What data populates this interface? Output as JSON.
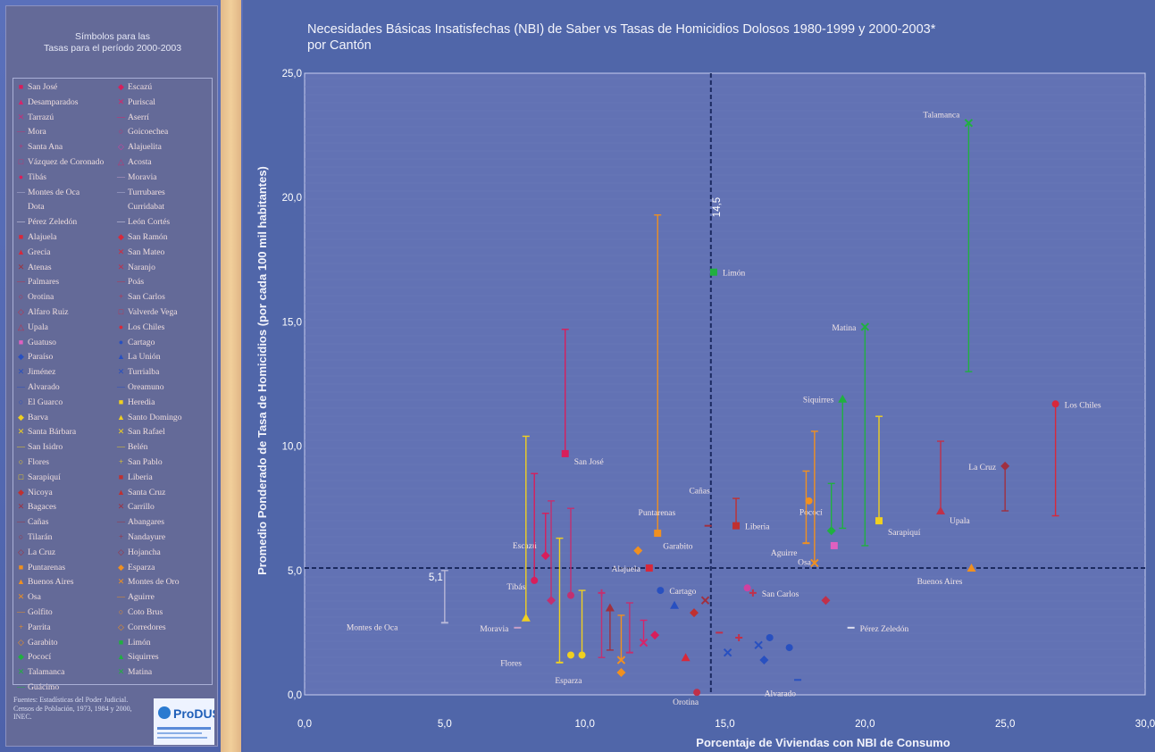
{
  "legend": {
    "header_line1": "Símbolos para las",
    "header_line2": "Tasas para el período 2000-2003",
    "entries": [
      {
        "name": "San José",
        "color": "#d81e5b",
        "glyph": "■"
      },
      {
        "name": "Escazú",
        "color": "#d81e5b",
        "glyph": "◆"
      },
      {
        "name": "Desamparados",
        "color": "#d8246a",
        "glyph": "▲"
      },
      {
        "name": "Puriscal",
        "color": "#d8246a",
        "glyph": "✕"
      },
      {
        "name": "Tarrazú",
        "color": "#c2307a",
        "glyph": "✕"
      },
      {
        "name": "Aserrí",
        "color": "#d8246a",
        "glyph": "—"
      },
      {
        "name": "Mora",
        "color": "#c23070",
        "glyph": "—"
      },
      {
        "name": "Goicoechea",
        "color": "#c23070",
        "glyph": "○"
      },
      {
        "name": "Santa Ana",
        "color": "#c23070",
        "glyph": "+"
      },
      {
        "name": "Alajuelita",
        "color": "#d040a0",
        "glyph": "◇"
      },
      {
        "name": "Vázquez de Coronado",
        "color": "#c23070",
        "glyph": "□"
      },
      {
        "name": "Acosta",
        "color": "#c23070",
        "glyph": "△"
      },
      {
        "name": "Tibás",
        "color": "#d81e5b",
        "glyph": "●"
      },
      {
        "name": "Moravia",
        "color": "#c8a0c8",
        "glyph": "—"
      },
      {
        "name": "Montes de Oca",
        "color": "#b8b8d8",
        "glyph": "—"
      },
      {
        "name": "Turrubares",
        "color": "#b8b8d8",
        "glyph": "—"
      },
      {
        "name": "Dota",
        "color": "#b8b8d8",
        "glyph": ""
      },
      {
        "name": "Curridabat",
        "color": "#b8b8d8",
        "glyph": ""
      },
      {
        "name": "Pérez Zeledón",
        "color": "#e0e0f0",
        "glyph": "—"
      },
      {
        "name": "León Cortés",
        "color": "#e0e0f0",
        "glyph": "—"
      },
      {
        "name": "Alajuela",
        "color": "#d8283a",
        "glyph": "■"
      },
      {
        "name": "San Ramón",
        "color": "#d8283a",
        "glyph": "◆"
      },
      {
        "name": "Grecia",
        "color": "#d8283a",
        "glyph": "▲"
      },
      {
        "name": "San Mateo",
        "color": "#d8283a",
        "glyph": "✕"
      },
      {
        "name": "Atenas",
        "color": "#a0303a",
        "glyph": "✕"
      },
      {
        "name": "Naranjo",
        "color": "#c0304a",
        "glyph": "✕"
      },
      {
        "name": "Palmares",
        "color": "#c0304a",
        "glyph": "—"
      },
      {
        "name": "Poás",
        "color": "#c0304a",
        "glyph": "—"
      },
      {
        "name": "Orotina",
        "color": "#c0304a",
        "glyph": "○"
      },
      {
        "name": "San Carlos",
        "color": "#c0304a",
        "glyph": "+"
      },
      {
        "name": "Alfaro Ruiz",
        "color": "#c0304a",
        "glyph": "◇"
      },
      {
        "name": "Valverde Vega",
        "color": "#c0304a",
        "glyph": "□"
      },
      {
        "name": "Upala",
        "color": "#c0304a",
        "glyph": "△"
      },
      {
        "name": "Los Chiles",
        "color": "#d8283a",
        "glyph": "●"
      },
      {
        "name": "Guatuso",
        "color": "#e060c0",
        "glyph": "■"
      },
      {
        "name": "Cartago",
        "color": "#2850c0",
        "glyph": "●"
      },
      {
        "name": "Paraíso",
        "color": "#2850c0",
        "glyph": "◆"
      },
      {
        "name": "La Unión",
        "color": "#2850c0",
        "glyph": "▲"
      },
      {
        "name": "Jiménez",
        "color": "#2850c0",
        "glyph": "✕"
      },
      {
        "name": "Turrialba",
        "color": "#2850c0",
        "glyph": "✕"
      },
      {
        "name": "Alvarado",
        "color": "#2850c0",
        "glyph": "—"
      },
      {
        "name": "Oreamuno",
        "color": "#2850c0",
        "glyph": "—"
      },
      {
        "name": "El Guarco",
        "color": "#2850c0",
        "glyph": "○"
      },
      {
        "name": "Heredia",
        "color": "#f0d020",
        "glyph": "■"
      },
      {
        "name": "Barva",
        "color": "#f0d020",
        "glyph": "◆"
      },
      {
        "name": "Santo Domingo",
        "color": "#f0d020",
        "glyph": "▲"
      },
      {
        "name": "Santa Bárbara",
        "color": "#f0d020",
        "glyph": "✕"
      },
      {
        "name": "San Rafael",
        "color": "#f0d020",
        "glyph": "✕"
      },
      {
        "name": "San Isidro",
        "color": "#f0d020",
        "glyph": "—"
      },
      {
        "name": "Belén",
        "color": "#f0d020",
        "glyph": "—"
      },
      {
        "name": "Flores",
        "color": "#f0d020",
        "glyph": "○"
      },
      {
        "name": "San Pablo",
        "color": "#f0d020",
        "glyph": "+"
      },
      {
        "name": "Sarapiquí",
        "color": "#f0d020",
        "glyph": "□"
      },
      {
        "name": "Liberia",
        "color": "#c03030",
        "glyph": "■"
      },
      {
        "name": "Nicoya",
        "color": "#c03030",
        "glyph": "◆"
      },
      {
        "name": "Santa Cruz",
        "color": "#c03030",
        "glyph": "▲"
      },
      {
        "name": "Bagaces",
        "color": "#a03040",
        "glyph": "✕"
      },
      {
        "name": "Carrillo",
        "color": "#a03040",
        "glyph": "✕"
      },
      {
        "name": "Cañas",
        "color": "#a03040",
        "glyph": "—"
      },
      {
        "name": "Abangares",
        "color": "#a03040",
        "glyph": "—"
      },
      {
        "name": "Tilarán",
        "color": "#a03040",
        "glyph": "○"
      },
      {
        "name": "Nandayure",
        "color": "#a03040",
        "glyph": "+"
      },
      {
        "name": "La Cruz",
        "color": "#a03040",
        "glyph": "◇"
      },
      {
        "name": "Hojancha",
        "color": "#a03040",
        "glyph": "◇"
      },
      {
        "name": "Puntarenas",
        "color": "#f09020",
        "glyph": "■"
      },
      {
        "name": "Esparza",
        "color": "#f09020",
        "glyph": "◆"
      },
      {
        "name": "Buenos Aires",
        "color": "#f09020",
        "glyph": "▲"
      },
      {
        "name": "Montes de Oro",
        "color": "#f09020",
        "glyph": "✕"
      },
      {
        "name": "Osa",
        "color": "#f09020",
        "glyph": "✕"
      },
      {
        "name": "Aguirre",
        "color": "#f09020",
        "glyph": "—"
      },
      {
        "name": "Golfito",
        "color": "#f09020",
        "glyph": "—"
      },
      {
        "name": "Coto Brus",
        "color": "#f09020",
        "glyph": "○"
      },
      {
        "name": "Parrita",
        "color": "#f09020",
        "glyph": "+"
      },
      {
        "name": "Corredores",
        "color": "#f09020",
        "glyph": "◇"
      },
      {
        "name": "Garabito",
        "color": "#f09020",
        "glyph": "◇"
      },
      {
        "name": "Limón",
        "color": "#20b040",
        "glyph": "■"
      },
      {
        "name": "Pococí",
        "color": "#20b040",
        "glyph": "◆"
      },
      {
        "name": "Siquirres",
        "color": "#20b040",
        "glyph": "▲"
      },
      {
        "name": "Talamanca",
        "color": "#20b040",
        "glyph": "✕"
      },
      {
        "name": "Matina",
        "color": "#20b040",
        "glyph": "✕"
      },
      {
        "name": "Guácimo",
        "color": "#20b040",
        "glyph": "—"
      }
    ]
  },
  "sources_text": "Fuentes: Estadísticas del Poder Judicial. Censos de Población, 1973, 1984 y 2000, INEC.",
  "logo_text": "ProDUS",
  "chart_data": {
    "type": "scatter",
    "title": "Necesidades Básicas Insatisfechas (NBI) de Saber vs Tasas de Homicidios Dolosos 1980-1999 y 2000-2003*",
    "subtitle": "por Cantón",
    "xlabel": "Porcentaje de Viviendas con NBI de Consumo",
    "ylabel": "Promedio Ponderado de Tasa de Homicidios (por cada 100 mil habitantes)",
    "xlim": [
      0,
      30
    ],
    "ylim": [
      0,
      25
    ],
    "x_ticks": [
      "0,0",
      "5,0",
      "10,0",
      "15,0",
      "20,0",
      "25,0",
      "30,0"
    ],
    "y_ticks": [
      "0,0",
      "5,0",
      "10,0",
      "15,0",
      "20,0",
      "25,0"
    ],
    "reference_lines": [
      {
        "axis": "x",
        "value": 14.5,
        "label": "14,5"
      },
      {
        "axis": "y",
        "value": 5.1,
        "label": "5,1"
      }
    ],
    "points": [
      {
        "label": "Talamanca",
        "x": 23.7,
        "y": 23.0,
        "y0": 13.0,
        "color": "#20b040",
        "marker": "x"
      },
      {
        "label": "Limón",
        "x": 14.6,
        "y": 17.0,
        "y0": null,
        "color": "#20b040",
        "marker": "square"
      },
      {
        "label": "Matina",
        "x": 20.0,
        "y": 14.8,
        "y0": 6.0,
        "color": "#20b040",
        "marker": "x"
      },
      {
        "label": "Siquirres",
        "x": 19.2,
        "y": 11.9,
        "y0": 6.7,
        "color": "#20b040",
        "marker": "triangle"
      },
      {
        "label": "Los Chiles",
        "x": 26.8,
        "y": 11.7,
        "y0": 7.2,
        "color": "#d8283a",
        "marker": "circle"
      },
      {
        "label": "San José",
        "x": 9.3,
        "y": 9.7,
        "y0": 14.7,
        "color": "#d81e5b",
        "marker": "square"
      },
      {
        "label": "La Cruz",
        "x": 25.0,
        "y": 9.2,
        "y0": 7.4,
        "color": "#a03040",
        "marker": "diamond"
      },
      {
        "label": "Upala",
        "x": 22.7,
        "y": 7.4,
        "y0": 10.2,
        "color": "#c0304a",
        "marker": "triangle"
      },
      {
        "label": "Sarapiquí",
        "x": 20.5,
        "y": 7.0,
        "y0": 11.2,
        "color": "#f0d020",
        "marker": "square"
      },
      {
        "label": "Pococí",
        "x": 18.8,
        "y": 6.6,
        "y0": 8.5,
        "color": "#20b040",
        "marker": "diamond"
      },
      {
        "label": "Cañas",
        "x": 14.4,
        "y": 6.8,
        "y0": null,
        "color": "#a03040",
        "marker": "dash"
      },
      {
        "label": "Puntarenas",
        "x": 12.6,
        "y": 6.5,
        "y0": 19.3,
        "color": "#f09020",
        "marker": "square"
      },
      {
        "label": "Liberia",
        "x": 15.4,
        "y": 6.8,
        "y0": 7.9,
        "color": "#c03030",
        "marker": "square"
      },
      {
        "label": "Aguirre",
        "x": 17.9,
        "y": 6.1,
        "y0": 9.0,
        "color": "#f09020",
        "marker": "dash"
      },
      {
        "label": "Osa",
        "x": 18.2,
        "y": 5.3,
        "y0": 10.6,
        "color": "#f09020",
        "marker": "x"
      },
      {
        "label": "Garabito",
        "x": 11.9,
        "y": 5.8,
        "y0": null,
        "color": "#f09020",
        "marker": "diamond"
      },
      {
        "label": "Escazú",
        "x": 8.6,
        "y": 5.6,
        "y0": 7.3,
        "color": "#d81e5b",
        "marker": "diamond"
      },
      {
        "label": "Alajuela",
        "x": 12.3,
        "y": 5.1,
        "y0": null,
        "color": "#d8283a",
        "marker": "square"
      },
      {
        "label": "Buenos Aires",
        "x": 23.8,
        "y": 5.1,
        "y0": null,
        "color": "#f09020",
        "marker": "triangle"
      },
      {
        "label": "Tibás",
        "x": 8.2,
        "y": 4.6,
        "y0": 8.9,
        "color": "#d81e5b",
        "marker": "circle"
      },
      {
        "label": "Cartago",
        "x": 12.7,
        "y": 4.2,
        "y0": null,
        "color": "#2850c0",
        "marker": "circle"
      },
      {
        "label": "San Carlos",
        "x": 16.0,
        "y": 4.1,
        "y0": null,
        "color": "#c0304a",
        "marker": "plus"
      },
      {
        "label": "Pérez Zeledón",
        "x": 19.5,
        "y": 2.7,
        "y0": null,
        "color": "#e0e0f0",
        "marker": "dash"
      },
      {
        "label": "Moravia",
        "x": 7.6,
        "y": 2.7,
        "y0": null,
        "color": "#c8a0c8",
        "marker": "dash"
      },
      {
        "label": "Montes de Oca",
        "x": 5.0,
        "y": 2.9,
        "y0": 5.0,
        "color": "#b8b8d8",
        "marker": "dash"
      },
      {
        "label": "Flores",
        "x": 9.5,
        "y": 1.6,
        "y0": null,
        "color": "#f0d020",
        "marker": "circle"
      },
      {
        "label": "Esparza",
        "x": 11.3,
        "y": 0.9,
        "y0": null,
        "color": "#f09020",
        "marker": "diamond"
      },
      {
        "label": "Orotina",
        "x": 14.0,
        "y": 0.1,
        "y0": null,
        "color": "#c0304a",
        "marker": "circle"
      },
      {
        "label": "Alvarado",
        "x": 17.6,
        "y": 0.6,
        "y0": null,
        "color": "#2850c0",
        "marker": "dash"
      },
      {
        "label": "",
        "x": 7.9,
        "y": 3.1,
        "y0": 10.4,
        "color": "#f0d020",
        "marker": "triangle"
      },
      {
        "label": "",
        "x": 8.8,
        "y": 3.8,
        "y0": 7.8,
        "color": "#c23070",
        "marker": "diamond"
      },
      {
        "label": "",
        "x": 9.1,
        "y": 1.3,
        "y0": 6.3,
        "color": "#f0d020",
        "marker": "dash"
      },
      {
        "label": "",
        "x": 9.5,
        "y": 4.0,
        "y0": 7.5,
        "color": "#c23070",
        "marker": "circle"
      },
      {
        "label": "",
        "x": 9.9,
        "y": 1.6,
        "y0": 4.2,
        "color": "#f0d020",
        "marker": "circle"
      },
      {
        "label": "",
        "x": 10.6,
        "y": 4.1,
        "y0": 1.5,
        "color": "#c23070",
        "marker": "plus"
      },
      {
        "label": "",
        "x": 10.9,
        "y": 3.5,
        "y0": 1.8,
        "color": "#a03040",
        "marker": "triangle"
      },
      {
        "label": "",
        "x": 11.3,
        "y": 1.4,
        "y0": 3.2,
        "color": "#f09020",
        "marker": "x"
      },
      {
        "label": "",
        "x": 11.6,
        "y": 1.7,
        "y0": 3.7,
        "color": "#c23070",
        "marker": "dash"
      },
      {
        "label": "",
        "x": 12.1,
        "y": 2.1,
        "y0": 3.0,
        "color": "#d8246a",
        "marker": "x"
      },
      {
        "label": "",
        "x": 12.5,
        "y": 2.4,
        "y0": null,
        "color": "#d81e5b",
        "marker": "diamond"
      },
      {
        "label": "",
        "x": 13.2,
        "y": 3.6,
        "y0": null,
        "color": "#2850c0",
        "marker": "triangle"
      },
      {
        "label": "",
        "x": 13.6,
        "y": 1.5,
        "y0": null,
        "color": "#d8283a",
        "marker": "triangle"
      },
      {
        "label": "",
        "x": 13.9,
        "y": 3.3,
        "y0": null,
        "color": "#c03030",
        "marker": "diamond"
      },
      {
        "label": "",
        "x": 14.3,
        "y": 3.8,
        "y0": null,
        "color": "#a03040",
        "marker": "x"
      },
      {
        "label": "",
        "x": 14.8,
        "y": 2.5,
        "y0": null,
        "color": "#c0304a",
        "marker": "dash"
      },
      {
        "label": "",
        "x": 15.1,
        "y": 1.7,
        "y0": null,
        "color": "#2850c0",
        "marker": "x"
      },
      {
        "label": "",
        "x": 15.5,
        "y": 2.3,
        "y0": null,
        "color": "#c0304a",
        "marker": "plus"
      },
      {
        "label": "",
        "x": 15.8,
        "y": 4.3,
        "y0": null,
        "color": "#d040a0",
        "marker": "circle"
      },
      {
        "label": "",
        "x": 16.2,
        "y": 2.0,
        "y0": null,
        "color": "#2850c0",
        "marker": "x"
      },
      {
        "label": "",
        "x": 16.4,
        "y": 1.4,
        "y0": null,
        "color": "#2850c0",
        "marker": "diamond"
      },
      {
        "label": "",
        "x": 16.6,
        "y": 2.3,
        "y0": null,
        "color": "#2850c0",
        "marker": "circle"
      },
      {
        "label": "",
        "x": 17.3,
        "y": 1.9,
        "y0": null,
        "color": "#2850c0",
        "marker": "circle"
      },
      {
        "label": "",
        "x": 18.6,
        "y": 3.8,
        "y0": null,
        "color": "#c0304a",
        "marker": "diamond"
      },
      {
        "label": "",
        "x": 18.0,
        "y": 7.8,
        "y0": null,
        "color": "#f09020",
        "marker": "circle"
      },
      {
        "label": "",
        "x": 18.9,
        "y": 6.0,
        "y0": null,
        "color": "#e060c0",
        "marker": "square"
      }
    ]
  }
}
